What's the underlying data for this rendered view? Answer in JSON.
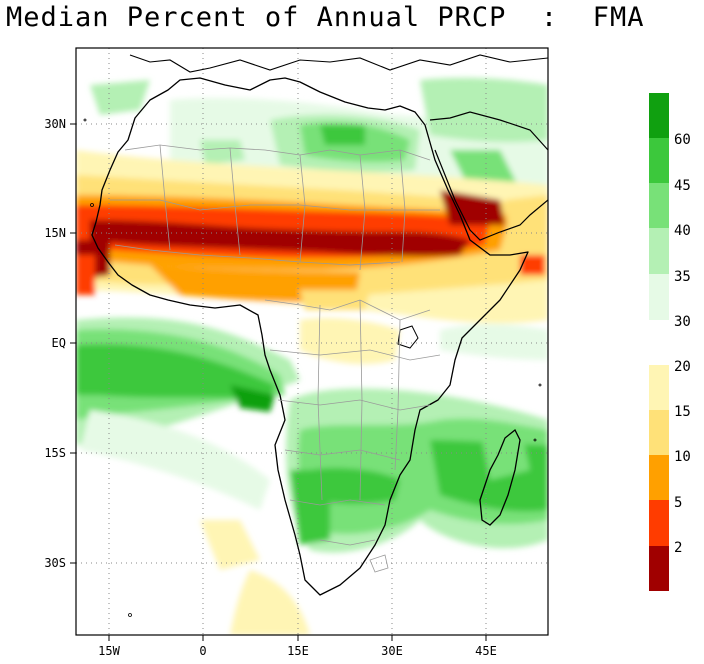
{
  "title": "Median Percent of Annual PRCP  :  FMA",
  "axes": {
    "x_ticks": [
      "15W",
      "0",
      "15E",
      "30E",
      "45E"
    ],
    "y_ticks": [
      "30N",
      "15N",
      "EQ",
      "15S",
      "30S"
    ]
  },
  "legend": {
    "upper": [
      {
        "label": "60",
        "color": "#10a010"
      },
      {
        "label": "45",
        "color": "#3cc83c"
      },
      {
        "label": "40",
        "color": "#78e178"
      },
      {
        "label": "35",
        "color": "#b4f0b4"
      },
      {
        "label": "30",
        "color": "#e6fae6"
      }
    ],
    "upper_top_color": "#10a010",
    "lower": [
      {
        "label": "20",
        "color": "#fff5b4"
      },
      {
        "label": "15",
        "color": "#ffe178"
      },
      {
        "label": "10",
        "color": "#ffa000"
      },
      {
        "label": "5",
        "color": "#ff3c00"
      },
      {
        "label": "2",
        "color": "#a00000"
      }
    ]
  }
}
